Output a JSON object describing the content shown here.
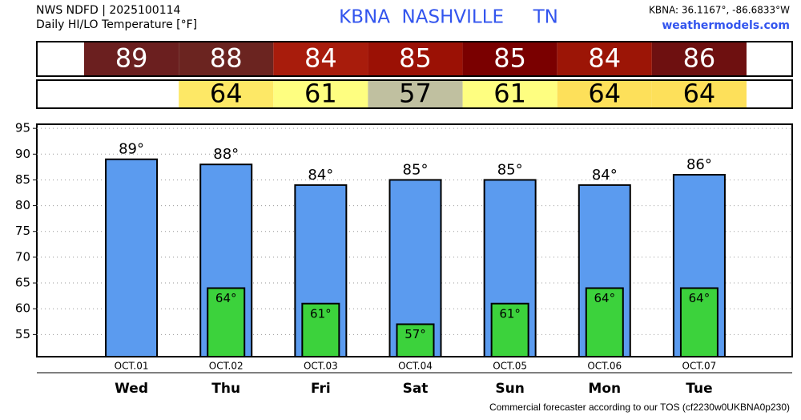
{
  "chart_data": {
    "type": "bar",
    "title": "NWS NDFD | 2025100114",
    "subtitle": "Daily HI/LO Temperature [°F]",
    "station": "KBNA  NASHVILLE     TN",
    "coords": "KBNA: 36.1167°, -86.6833°W",
    "site": "weathermodels.com",
    "footer": "Commercial forecaster according to our TOS (cf2230w0UKBNA0p230)",
    "dates": [
      "OCT.01",
      "OCT.02",
      "OCT.03",
      "OCT.04",
      "OCT.05",
      "OCT.06",
      "OCT.07"
    ],
    "categories": [
      "Wed",
      "Thu",
      "Fri",
      "Sat",
      "Sun",
      "Mon",
      "Tue"
    ],
    "series": [
      {
        "name": "HI",
        "color": "#5b9bef",
        "values": [
          89,
          88,
          84,
          85,
          85,
          84,
          86
        ],
        "value_labels": [
          "89°",
          "88°",
          "84°",
          "85°",
          "85°",
          "84°",
          "86°"
        ],
        "strip_colors": [
          "#6b1f1f",
          "#6b2420",
          "#a81c0c",
          "#9b1105",
          "#7a0000",
          "#9c1506",
          "#6e1010"
        ]
      },
      {
        "name": "LO",
        "color": "#3cd23c",
        "values": [
          null,
          64,
          61,
          57,
          61,
          64,
          64
        ],
        "value_labels": [
          null,
          "64°",
          "61°",
          "57°",
          "61°",
          "64°",
          "64°"
        ],
        "strip_colors": [
          null,
          "#fde866",
          "#fefe80",
          "#c0c0a0",
          "#fefe80",
          "#fde05a",
          "#fde05a"
        ]
      }
    ],
    "ylim": [
      50.7,
      95.8
    ],
    "yticks": [
      55,
      60,
      65,
      70,
      75,
      80,
      85,
      90,
      95
    ],
    "grid": true
  }
}
